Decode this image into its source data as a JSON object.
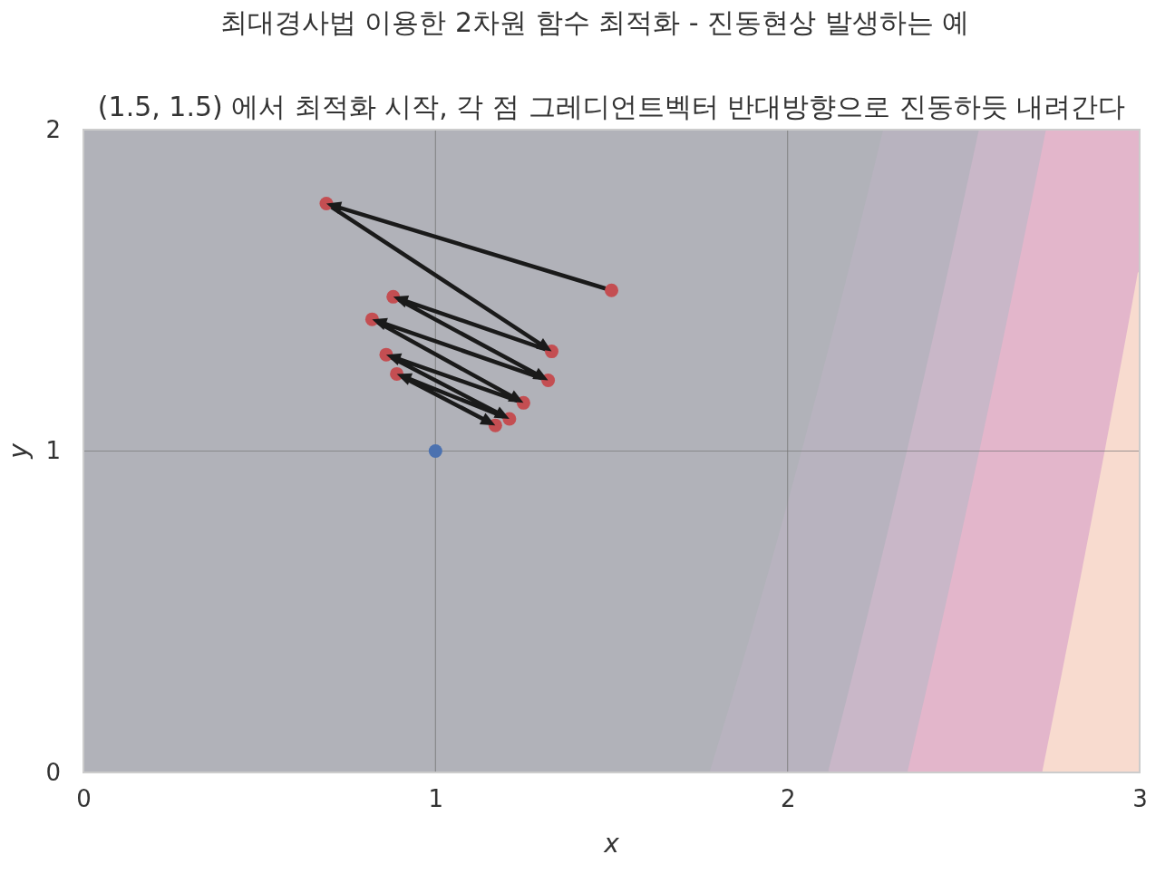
{
  "chart_data": {
    "type": "scatter",
    "title": "최대경사법 이용한 2차원 함수 최적화 - 진동현상 발생하는 예",
    "subtitle": "(1.5, 1.5) 에서 최적화 시작, 각 점 그레디언트벡터 반대방향으로 진동하듯 내려간다",
    "xlabel": "x",
    "ylabel": "y",
    "xlim": [
      0,
      3
    ],
    "ylim": [
      0,
      2
    ],
    "xticks": [
      0,
      1,
      2,
      3
    ],
    "yticks": [
      0,
      1,
      2
    ],
    "grid": true,
    "series": [
      {
        "type": "line",
        "color": "#1a1a1a",
        "marker": "none",
        "x": [
          1.5,
          0.69,
          1.33,
          0.88,
          1.32,
          0.82,
          1.25,
          0.86,
          1.21,
          0.89,
          1.17
        ],
        "values": [
          1.5,
          1.77,
          1.31,
          1.48,
          1.22,
          1.41,
          1.15,
          1.3,
          1.1,
          1.24,
          1.08
        ]
      },
      {
        "type": "scatter",
        "color": "#c44e52",
        "marker": "circle",
        "x": [
          1.5,
          0.69,
          1.33,
          0.88,
          1.32,
          0.82,
          1.25,
          0.86,
          1.21,
          0.89,
          1.17
        ],
        "values": [
          1.5,
          1.77,
          1.31,
          1.48,
          1.22,
          1.41,
          1.15,
          1.3,
          1.1,
          1.24,
          1.08
        ]
      },
      {
        "type": "scatter",
        "color": "#4c72b0",
        "marker": "circle",
        "x": [
          1
        ],
        "values": [
          1
        ]
      }
    ]
  }
}
